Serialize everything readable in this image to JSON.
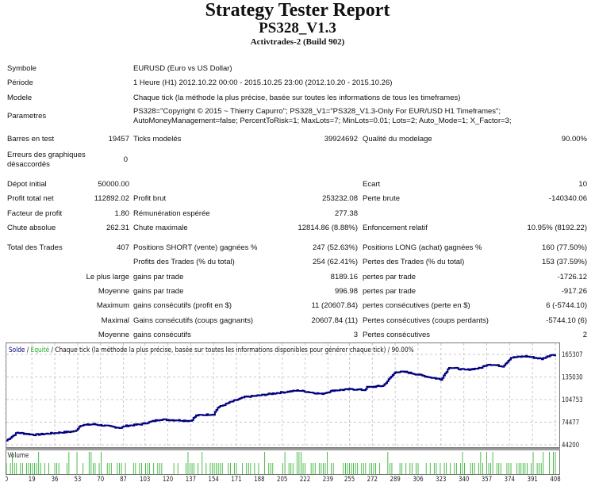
{
  "header": {
    "title": "Strategy Tester Report",
    "expert": "PS328_V1.3",
    "server": "Activtrades-2 (Build 902)"
  },
  "info": [
    {
      "label": "Symbole",
      "value": "EURUSD (Euro vs US Dollar)"
    },
    {
      "label": "Période",
      "value": "1 Heure (H1) 2012.10.22 00:00 - 2015.10.25 23:00 (2012.10.20 - 2015.10.26)"
    },
    {
      "label": "Modele",
      "value": "Chaque tick (la méthode la plus précise, basée sur toutes les informations de tous les timeframes)"
    },
    {
      "label": "Parametres",
      "value": "PS328=\"Copyright © 2015 ~ Thierry Capurro\"; PS328_V1=\"PS328_V1.3-Only For EUR/USD H1 Timeframes\";",
      "value2": "AutoMoneyManagement=false; PercentToRisk=1; MaxLots=7; MinLots=0.01; Lots=2; Auto_Mode=1; X_Factor=3;"
    }
  ],
  "stats": [
    [
      "Barres en test",
      "19457",
      "Ticks modelés",
      "39924692",
      "Qualité du modelage",
      "90.00%"
    ],
    [
      "Erreurs des graphiques|désaccordés",
      "0",
      "",
      "",
      "",
      ""
    ],
    [
      "Dépot initial",
      "50000.00",
      "",
      "",
      "Ecart",
      "10"
    ],
    [
      "Profit total net",
      "112892.02",
      "Profit brut",
      "253232.08",
      "Perte brute",
      "-140340.06"
    ],
    [
      "Facteur de profit",
      "1.80",
      "Rémunération espérée",
      "277.38",
      "",
      ""
    ],
    [
      "Chute absolue",
      "262.31",
      "Chute maximale",
      "12814.86 (8.88%)",
      "Enfoncement relatif",
      "10.95% (8192.22)"
    ],
    [
      "Total des Trades",
      "407",
      "Positions SHORT (vente) gagnées %",
      "247 (52.63%)",
      "Positions LONG (achat) gagnées %",
      "160 (77.50%)"
    ],
    [
      "",
      "",
      "Profits des Trades (% du total)",
      "254 (62.41%)",
      "Pertes des Trades (% du total)",
      "153 (37.59%)"
    ],
    [
      "",
      "Le plus large",
      "gains par trade",
      "8189.16",
      "pertes par trade",
      "-1726.12"
    ],
    [
      "",
      "Moyenne",
      "gains par trade",
      "996.98",
      "pertes par trade",
      "-917.26"
    ],
    [
      "",
      "Maximum",
      "gains consécutifs (profit en $)",
      "11 (20607.84)",
      "pertes consécutives (perte en $)",
      "6 (-5744.10)"
    ],
    [
      "",
      "Maximal",
      "Gains consécutifs (coups gagnants)",
      "20607.84 (11)",
      "Pertes consécutives (coups perdants)",
      "-5744.10 (6)"
    ],
    [
      "",
      "Moyenne",
      "gains consécutifs",
      "3",
      "Pertes consécutives",
      "2"
    ]
  ],
  "chart_data": {
    "type": "line",
    "legend": {
      "balance": "Solde",
      "equity": "Equité",
      "rest": " / Chaque tick (la méthode la plus précise, basée sur toutes les informations disponibles pour générer chaque tick) / 90.00%"
    },
    "volume_label": "Volume",
    "y_ticks": [
      44200,
      74477,
      104753,
      135030,
      165307
    ],
    "x_ticks": [
      0,
      19,
      36,
      53,
      70,
      87,
      103,
      120,
      137,
      154,
      171,
      188,
      205,
      222,
      239,
      255,
      272,
      289,
      306,
      323,
      340,
      357,
      374,
      391,
      408
    ],
    "xlim": [
      0,
      408
    ],
    "ylim": [
      44200,
      165307
    ],
    "grid": true,
    "colors": {
      "balance": "#000080",
      "equity": "#22aa22",
      "volume": "#22aa22",
      "grid": "#c8c8c8"
    },
    "balance": [
      [
        0,
        49850
      ],
      [
        8,
        60440
      ],
      [
        21,
        57600
      ],
      [
        34,
        59700
      ],
      [
        51,
        62200
      ],
      [
        55,
        70300
      ],
      [
        65,
        71700
      ],
      [
        85,
        66800
      ],
      [
        88,
        69300
      ],
      [
        100,
        71700
      ],
      [
        114,
        78100
      ],
      [
        137,
        76300
      ],
      [
        141,
        83400
      ],
      [
        154,
        85200
      ],
      [
        157,
        94000
      ],
      [
        166,
        101000
      ],
      [
        177,
        108100
      ],
      [
        189,
        110600
      ],
      [
        200,
        113400
      ],
      [
        217,
        117000
      ],
      [
        234,
        112300
      ],
      [
        243,
        117000
      ],
      [
        257,
        118700
      ],
      [
        266,
        117600
      ],
      [
        268,
        121200
      ],
      [
        280,
        123300
      ],
      [
        289,
        141700
      ],
      [
        297,
        141700
      ],
      [
        315,
        134600
      ],
      [
        323,
        131800
      ],
      [
        329,
        148000
      ],
      [
        341,
        144500
      ],
      [
        352,
        147000
      ],
      [
        358,
        152200
      ],
      [
        369,
        149400
      ],
      [
        375,
        161000
      ],
      [
        386,
        162800
      ],
      [
        398,
        159300
      ],
      [
        406,
        165600
      ],
      [
        408,
        162800
      ]
    ]
  }
}
